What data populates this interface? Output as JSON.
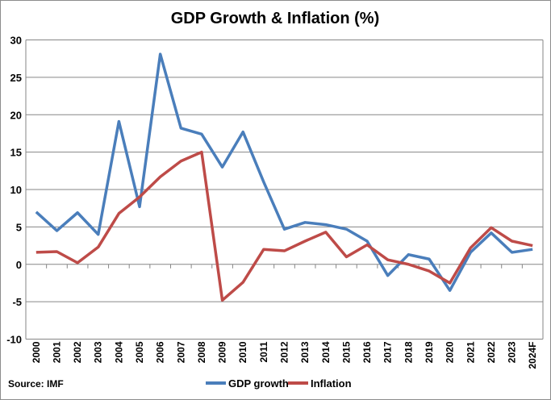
{
  "chart_data": {
    "type": "line",
    "title": "GDP Growth & Inflation (%)",
    "xlabel": "",
    "ylabel": "",
    "categories": [
      "2000",
      "2001",
      "2002",
      "2003",
      "2004",
      "2005",
      "2006",
      "2007",
      "2008",
      "2009",
      "2010",
      "2011",
      "2012",
      "2013",
      "2014",
      "2015",
      "2016",
      "2017",
      "2018",
      "2019",
      "2020",
      "2021",
      "2022",
      "2023",
      "2024F"
    ],
    "ylim": [
      -10,
      30
    ],
    "yticks": [
      -10,
      -5,
      0,
      5,
      10,
      15,
      20,
      25,
      30
    ],
    "grid": true,
    "legend": "bottom",
    "series": [
      {
        "name": "GDP growth",
        "color": "#4a7ebb",
        "values": [
          7.0,
          4.5,
          6.9,
          4.0,
          19.1,
          7.7,
          28.1,
          18.2,
          17.4,
          13.0,
          17.7,
          11.0,
          4.7,
          5.6,
          5.3,
          4.7,
          3.1,
          -1.5,
          1.3,
          0.7,
          -3.5,
          1.6,
          4.2,
          1.6,
          2.0
        ]
      },
      {
        "name": "Inflation",
        "color": "#be4b48",
        "values": [
          1.6,
          1.7,
          0.2,
          2.3,
          6.8,
          9.0,
          11.7,
          13.8,
          15.0,
          -4.8,
          -2.4,
          2.0,
          1.8,
          3.1,
          4.3,
          1.0,
          2.6,
          0.6,
          0.0,
          -0.9,
          -2.5,
          2.2,
          4.9,
          3.1,
          2.5
        ]
      }
    ],
    "source": "Source: IMF"
  }
}
